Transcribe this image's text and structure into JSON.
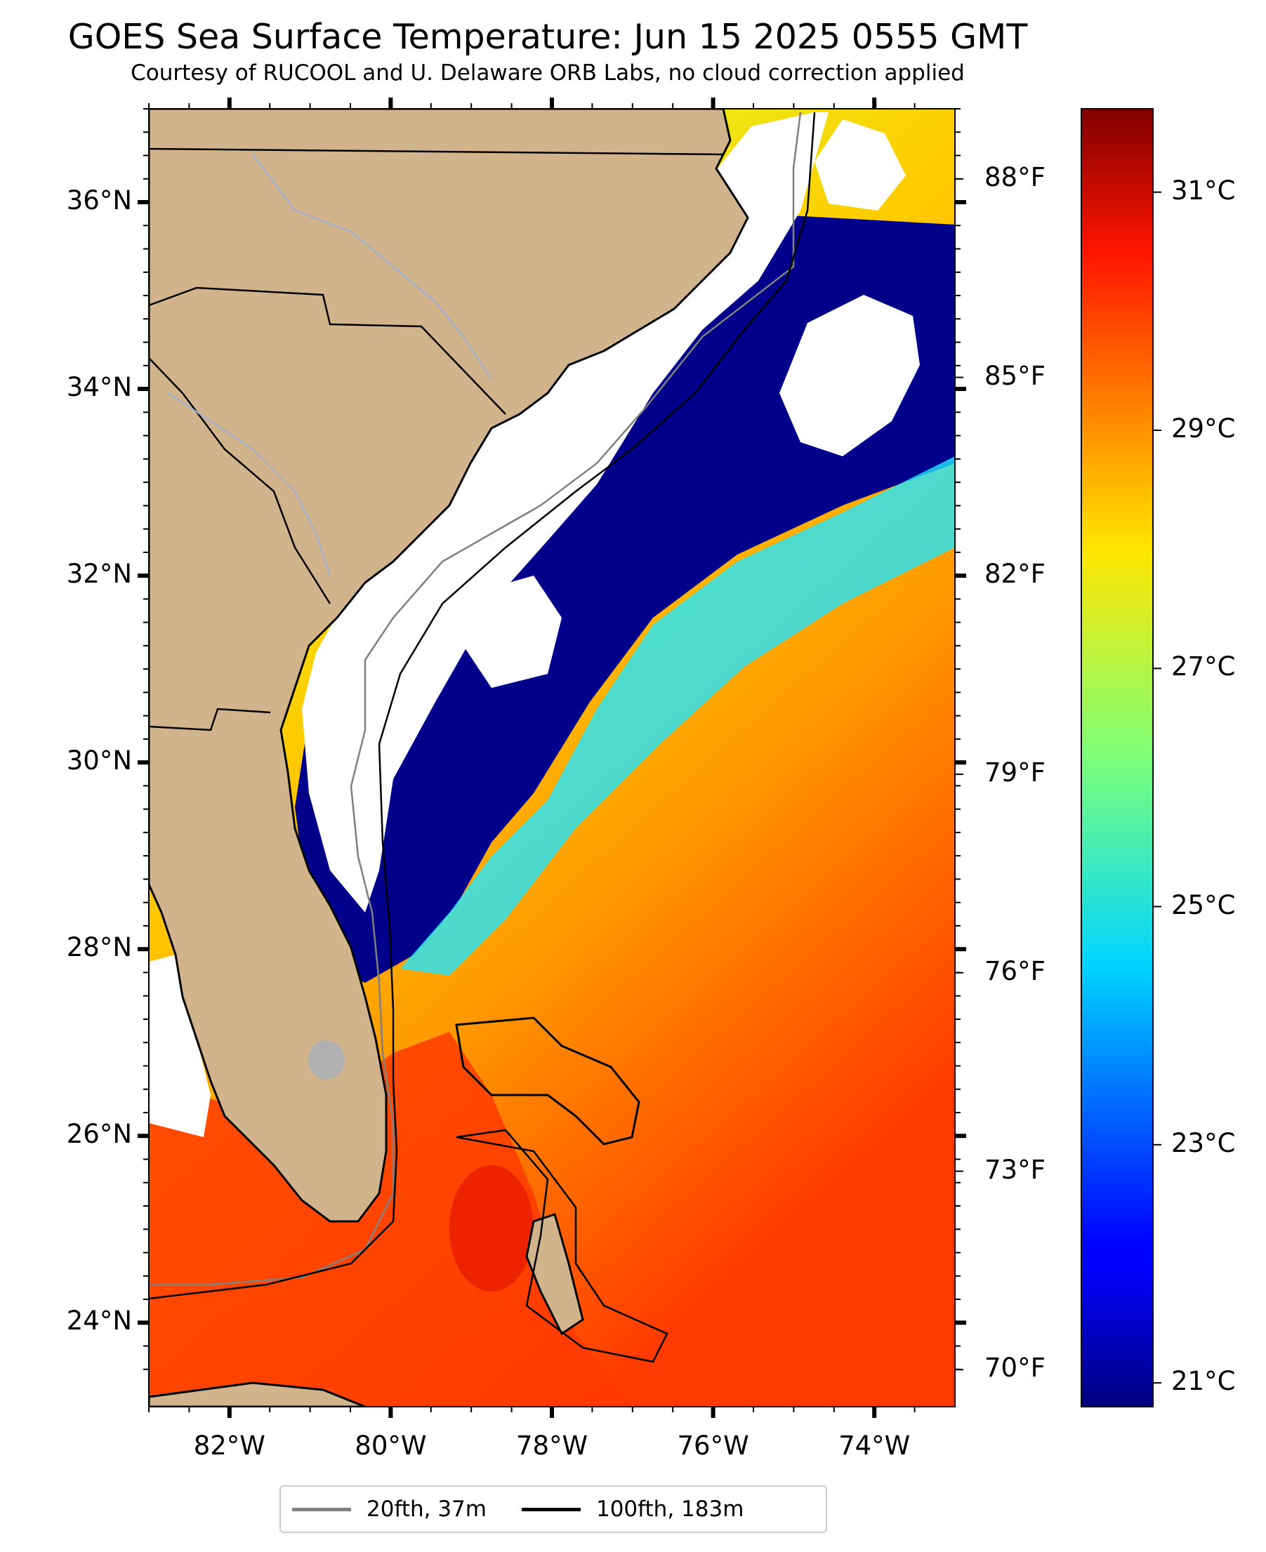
{
  "title": "GOES Sea Surface Temperature: Jun 15 2025 0555 GMT",
  "subtitle": "Courtesy of RUCOOL and U. Delaware ORB Labs, no cloud correction applied",
  "map": {
    "lon_range": [
      -83.0,
      -73.0
    ],
    "lat_range": [
      23.1,
      37.0
    ],
    "lon_ticks": [
      "82°W",
      "80°W",
      "78°W",
      "76°W",
      "74°W"
    ],
    "lat_ticks": [
      "36°N",
      "34°N",
      "32°N",
      "30°N",
      "28°N",
      "26°N",
      "24°N"
    ],
    "fahrenheit_ticks": [
      "88°F",
      "85°F",
      "82°F",
      "79°F",
      "76°F",
      "73°F",
      "70°F"
    ],
    "colors": {
      "land": "#d2b48c",
      "no_data_cloud": "#ffffff",
      "cold_water": "#00008b",
      "warm_water": "#ffa500",
      "hot_water": "#ff3000",
      "lake": "#b0b0b0",
      "contour_20fth": "#808080",
      "contour_100fth": "#000000",
      "river": "#9ab0d8"
    }
  },
  "colorbar": {
    "min_c": 20.8,
    "max_c": 31.7,
    "ticks": [
      "31°C",
      "29°C",
      "27°C",
      "25°C",
      "23°C",
      "21°C"
    ],
    "colormap": "jet"
  },
  "legend": [
    {
      "label": "20fth, 37m",
      "color": "#808080"
    },
    {
      "label": "100fth, 183m",
      "color": "#000000"
    }
  ]
}
